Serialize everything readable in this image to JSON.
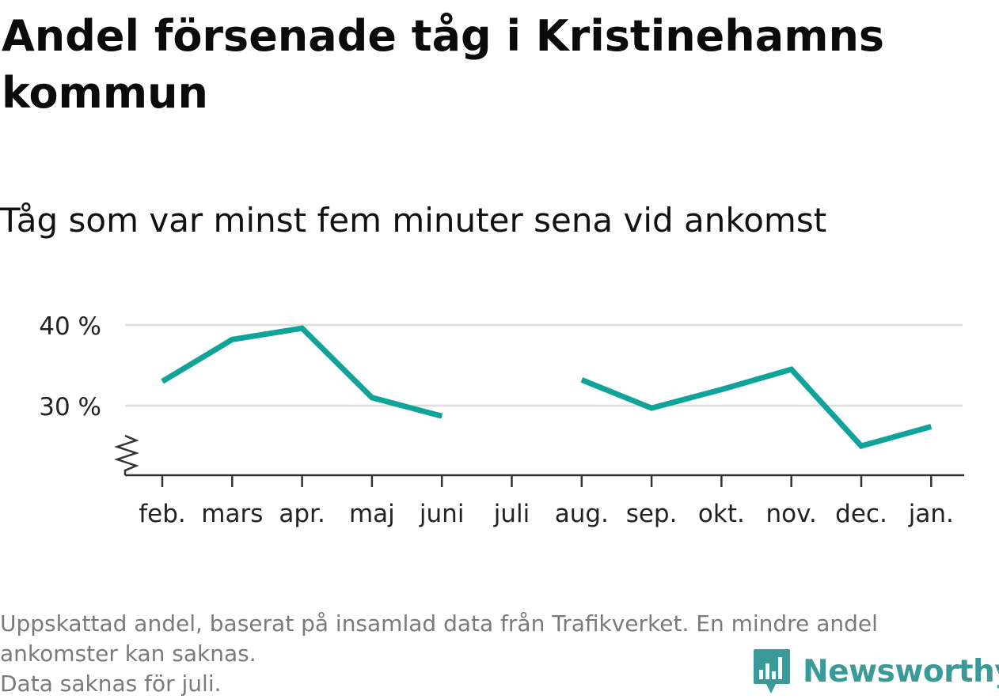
{
  "title": "Andel försenade tåg i Kristinehamns kommun",
  "subtitle": "Tåg som var minst fem minuter sena vid ankomst",
  "footnote": {
    "line1": "Uppskattad andel, baserat på insamlad data från Trafikverket. En mindre andel",
    "line2": "ankomster kan saknas.",
    "line3": "Data saknas för juli."
  },
  "brand": {
    "name": "Newsworthy",
    "icon": "bar-chart-speech-bubble-icon",
    "color": "#3a9a97"
  },
  "colors": {
    "line": "#0fa39a",
    "grid": "#dddddd",
    "axis": "#333333"
  },
  "chart_data": {
    "type": "line",
    "categories": [
      "feb.",
      "mars",
      "apr.",
      "maj",
      "juni",
      "juli",
      "aug.",
      "sep.",
      "okt.",
      "nov.",
      "dec.",
      "jan."
    ],
    "series": [
      {
        "values": [
          33.0,
          38.2,
          39.6,
          31.0,
          28.7,
          null,
          33.2,
          29.7,
          32.0,
          34.5,
          25.0,
          27.4
        ]
      }
    ],
    "ytick_labels": [
      "30 %",
      "40 %"
    ],
    "yticks": [
      30,
      40
    ],
    "ylim": [
      21,
      42
    ],
    "y_axis_break": true,
    "grid": true,
    "legend": "none"
  }
}
